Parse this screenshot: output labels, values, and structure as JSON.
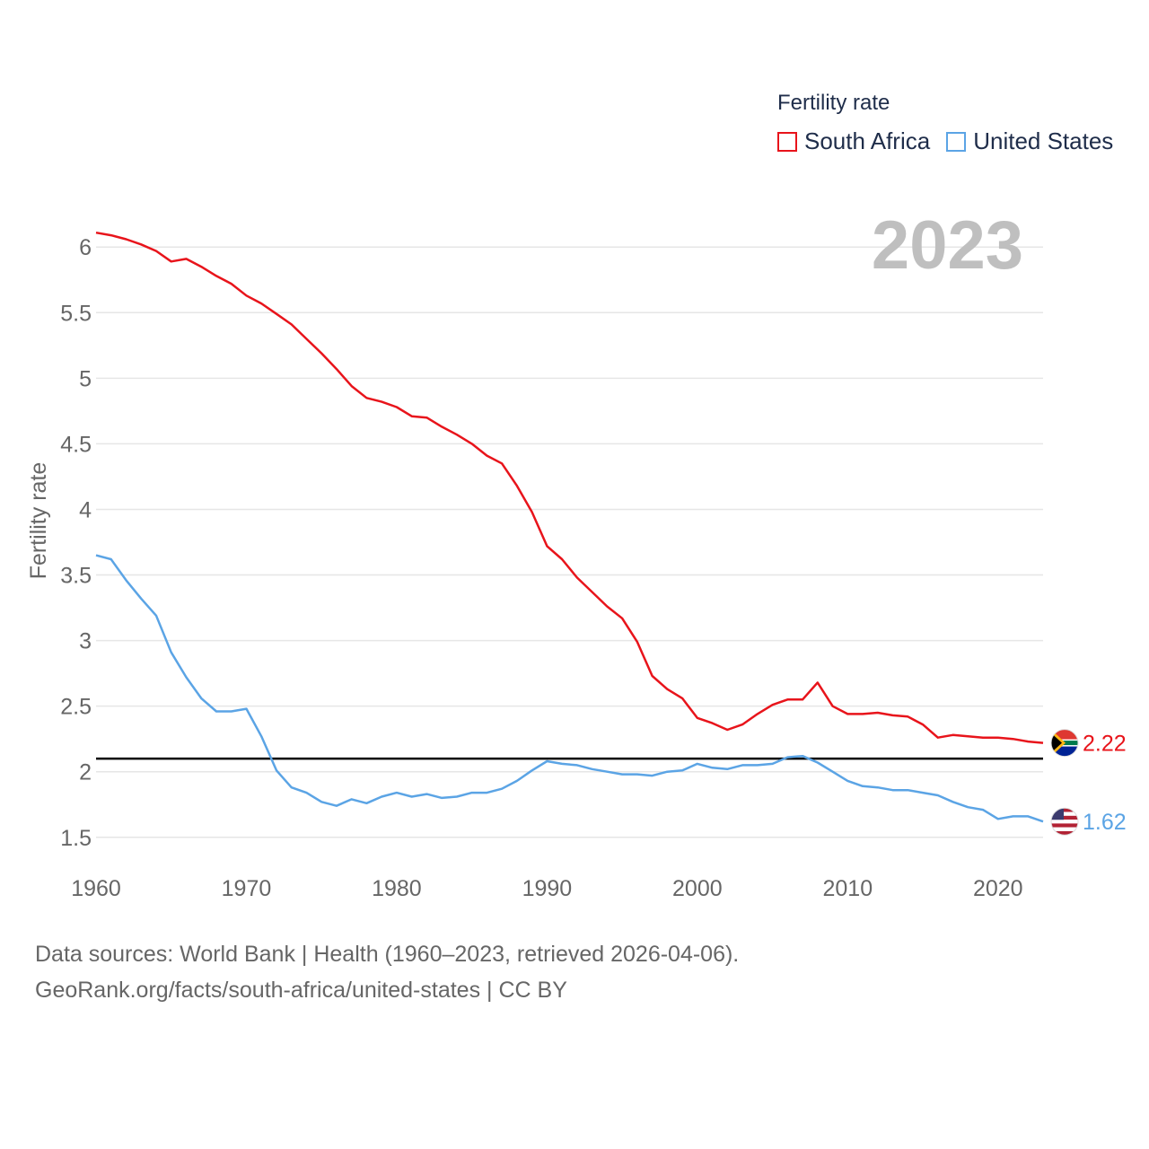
{
  "legend": {
    "title": "Fertility rate",
    "items": [
      {
        "label": "South Africa",
        "color": "#e8141b"
      },
      {
        "label": "United States",
        "color": "#5ba4e5"
      }
    ]
  },
  "year_overlay": "2023",
  "footer": {
    "line1": "Data sources: World Bank | Health (1960–2023, retrieved 2026-04-06).",
    "line2": "GeoRank.org/facts/south-africa/united-states | CC BY"
  },
  "colors": {
    "grid": "#e6e6e6",
    "axis_text": "#666666",
    "reference_line": "#000000",
    "year_text": "#bfbfbf"
  },
  "chart_data": {
    "type": "line",
    "title": "Fertility rate",
    "xlabel": "",
    "ylabel": "Fertility rate",
    "xlim": [
      1960,
      2023
    ],
    "ylim": [
      1.3,
      6.2
    ],
    "yticks": [
      1.5,
      2,
      2.5,
      3,
      3.5,
      4,
      4.5,
      5,
      5.5,
      6
    ],
    "ytick_labels": [
      "1.5",
      "2",
      "2.5",
      "3",
      "3.5",
      "4",
      "4.5",
      "5",
      "5.5",
      "6"
    ],
    "xticks": [
      1960,
      1970,
      1980,
      1990,
      2000,
      2010,
      2020
    ],
    "xtick_labels": [
      "1960",
      "1970",
      "1980",
      "1990",
      "2000",
      "2010",
      "2020"
    ],
    "reference_line": {
      "y": 2.1
    },
    "x": [
      1960,
      1961,
      1962,
      1963,
      1964,
      1965,
      1966,
      1967,
      1968,
      1969,
      1970,
      1971,
      1972,
      1973,
      1974,
      1975,
      1976,
      1977,
      1978,
      1979,
      1980,
      1981,
      1982,
      1983,
      1984,
      1985,
      1986,
      1987,
      1988,
      1989,
      1990,
      1991,
      1992,
      1993,
      1994,
      1995,
      1996,
      1997,
      1998,
      1999,
      2000,
      2001,
      2002,
      2003,
      2004,
      2005,
      2006,
      2007,
      2008,
      2009,
      2010,
      2011,
      2012,
      2013,
      2014,
      2015,
      2016,
      2017,
      2018,
      2019,
      2020,
      2021,
      2022,
      2023
    ],
    "series": [
      {
        "name": "South Africa",
        "color": "#e8141b",
        "end_label": "2.22",
        "values": [
          6.11,
          6.09,
          6.06,
          6.02,
          5.97,
          5.89,
          5.91,
          5.85,
          5.78,
          5.72,
          5.63,
          5.57,
          5.49,
          5.41,
          5.3,
          5.19,
          5.07,
          4.94,
          4.85,
          4.82,
          4.78,
          4.71,
          4.7,
          4.63,
          4.57,
          4.5,
          4.41,
          4.35,
          4.18,
          3.98,
          3.72,
          3.62,
          3.48,
          3.37,
          3.26,
          3.17,
          2.99,
          2.73,
          2.63,
          2.56,
          2.41,
          2.37,
          2.32,
          2.36,
          2.44,
          2.51,
          2.55,
          2.55,
          2.68,
          2.5,
          2.44,
          2.44,
          2.45,
          2.43,
          2.42,
          2.36,
          2.26,
          2.28,
          2.27,
          2.26,
          2.26,
          2.25,
          2.23,
          2.22
        ]
      },
      {
        "name": "United States",
        "color": "#5ba4e5",
        "end_label": "1.62",
        "values": [
          3.65,
          3.62,
          3.46,
          3.32,
          3.19,
          2.91,
          2.72,
          2.56,
          2.46,
          2.46,
          2.48,
          2.27,
          2.01,
          1.88,
          1.84,
          1.77,
          1.74,
          1.79,
          1.76,
          1.81,
          1.84,
          1.81,
          1.83,
          1.8,
          1.81,
          1.84,
          1.84,
          1.87,
          1.93,
          2.01,
          2.08,
          2.06,
          2.05,
          2.02,
          2.0,
          1.98,
          1.98,
          1.97,
          2.0,
          2.01,
          2.06,
          2.03,
          2.02,
          2.05,
          2.05,
          2.06,
          2.11,
          2.12,
          2.07,
          2.0,
          1.93,
          1.89,
          1.88,
          1.86,
          1.86,
          1.84,
          1.82,
          1.77,
          1.73,
          1.71,
          1.64,
          1.66,
          1.66,
          1.62
        ]
      }
    ]
  }
}
